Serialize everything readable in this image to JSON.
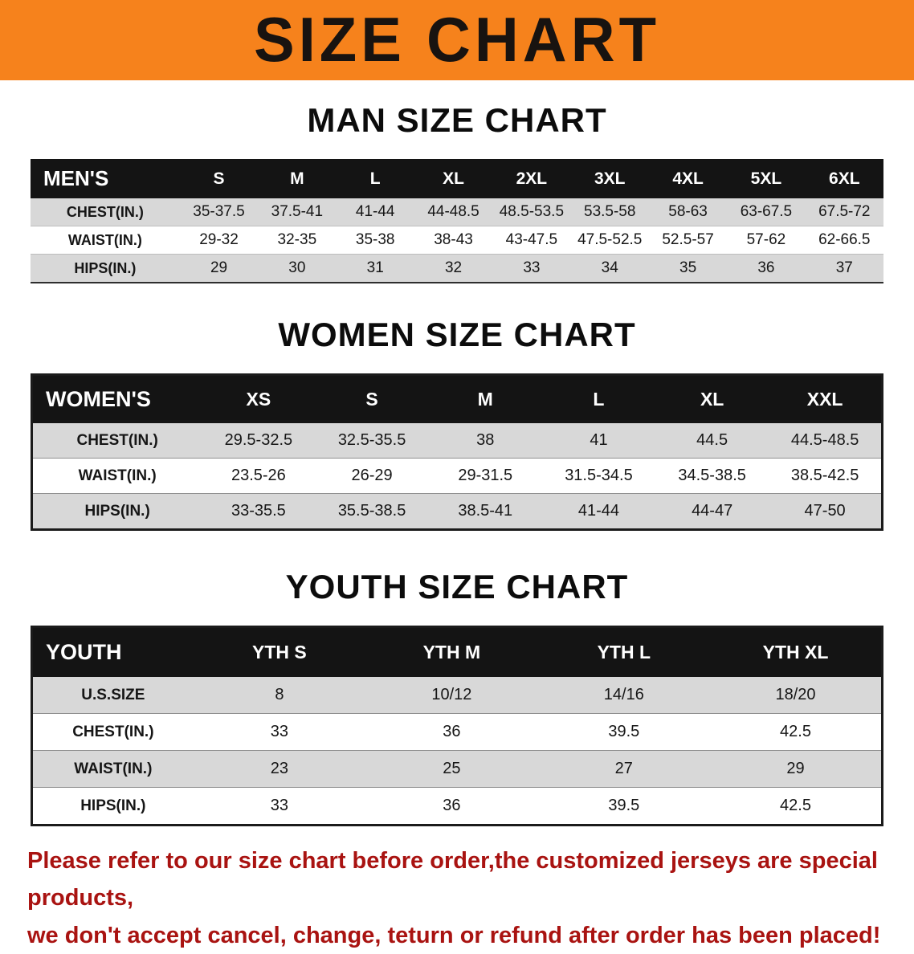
{
  "banner": {
    "title": "SIZE CHART",
    "bg_color": "#f6821c",
    "text_color": "#181310"
  },
  "sections": [
    {
      "heading": "MAN SIZE CHART",
      "table": {
        "header": [
          "MEN'S",
          "S",
          "M",
          "L",
          "XL",
          "2XL",
          "3XL",
          "4XL",
          "5XL",
          "6XL"
        ],
        "rows": [
          {
            "label": "CHEST(IN.)",
            "values": [
              "35-37.5",
              "37.5-41",
              "41-44",
              "44-48.5",
              "48.5-53.5",
              "53.5-58",
              "58-63",
              "63-67.5",
              "67.5-72"
            ]
          },
          {
            "label": "WAIST(IN.)",
            "values": [
              "29-32",
              "32-35",
              "35-38",
              "38-43",
              "43-47.5",
              "47.5-52.5",
              "52.5-57",
              "57-62",
              "62-66.5"
            ]
          },
          {
            "label": "HIPS(IN.)",
            "values": [
              "29",
              "30",
              "31",
              "32",
              "33",
              "34",
              "35",
              "36",
              "37"
            ]
          }
        ]
      }
    },
    {
      "heading": "WOMEN SIZE CHART",
      "table": {
        "header": [
          "WOMEN'S",
          "XS",
          "S",
          "M",
          "L",
          "XL",
          "XXL"
        ],
        "rows": [
          {
            "label": "CHEST(IN.)",
            "values": [
              "29.5-32.5",
              "32.5-35.5",
              "38",
              "41",
              "44.5",
              "44.5-48.5"
            ]
          },
          {
            "label": "WAIST(IN.)",
            "values": [
              "23.5-26",
              "26-29",
              "29-31.5",
              "31.5-34.5",
              "34.5-38.5",
              "38.5-42.5"
            ]
          },
          {
            "label": "HIPS(IN.)",
            "values": [
              "33-35.5",
              "35.5-38.5",
              "38.5-41",
              "41-44",
              "44-47",
              "47-50"
            ]
          }
        ]
      }
    },
    {
      "heading": "YOUTH SIZE CHART",
      "table": {
        "header": [
          "YOUTH",
          "YTH S",
          "YTH M",
          "YTH L",
          "YTH XL"
        ],
        "rows": [
          {
            "label": "U.S.SIZE",
            "values": [
              "8",
              "10/12",
              "14/16",
              "18/20"
            ]
          },
          {
            "label": "CHEST(IN.)",
            "values": [
              "33",
              "36",
              "39.5",
              "42.5"
            ]
          },
          {
            "label": "WAIST(IN.)",
            "values": [
              "23",
              "25",
              "27",
              "29"
            ]
          },
          {
            "label": "HIPS(IN.)",
            "values": [
              "33",
              "36",
              "39.5",
              "42.5"
            ]
          }
        ]
      }
    }
  ],
  "footer": {
    "line1": "Please refer to our size chart before order,the customized jerseys are special products,",
    "line2": "we don't accept cancel, change, teturn or refund after order has been placed!",
    "text_color": "#a91311"
  }
}
